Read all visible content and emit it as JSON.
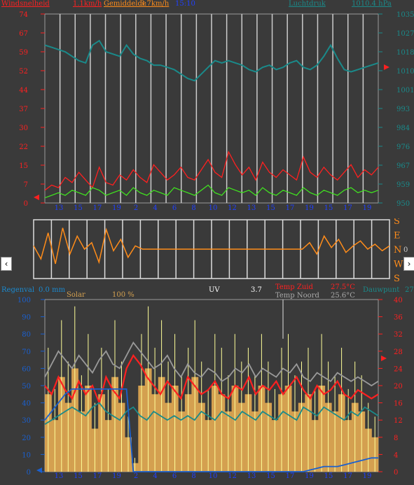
{
  "header": {
    "wind_label": "Windsnelheid",
    "wind_value": "1.1km/h",
    "avg_label": "Gemiddelde",
    "avg_value": "3.7km/h",
    "time": "15:10",
    "pressure_label": "Luchtdruk",
    "pressure_value": "1010.4 hPa"
  },
  "footer_header": {
    "rain_label": "Regenval",
    "rain_value": "0.0 mm",
    "solar_label": "Solar",
    "solar_value": "100 %",
    "uv_label": "UV",
    "uv_value": "3.7",
    "temp_south_label": "Temp Zuid",
    "temp_south_value": "27.5°C",
    "temp_north_label": "Temp Noord",
    "temp_north_value": "25.6°C",
    "dew_label": "Dauwpunt",
    "dew_value": "27"
  },
  "colors": {
    "background": "#3a3a3a",
    "plot_bg": "#3a3a3a",
    "red": "#ff2020",
    "green": "#40e020",
    "teal": "#1a8a8a",
    "orange": "#ff8c1a",
    "blue": "#1a60d0",
    "yellow": "#ffff99",
    "tan": "#d4a050",
    "grey": "#9a9a9a"
  },
  "nav": {
    "left_label": "‹",
    "right_label": "›"
  },
  "chart_data": [
    {
      "type": "line",
      "name_key": "wind",
      "y_ticks_left": [
        "74",
        "67",
        "59",
        "52",
        "44",
        "37",
        "30",
        "22",
        "15",
        "7",
        "0"
      ],
      "y_ticks_right": [
        "1035",
        "1027",
        "1018",
        "1010",
        "1001",
        "993",
        "984",
        "976",
        "967",
        "959",
        "950"
      ],
      "x_ticks": [
        "13",
        "15",
        "17",
        "19",
        "2",
        "4",
        "6",
        "8",
        "10",
        "12",
        "13",
        "15",
        "17",
        "19",
        "15",
        "17",
        "19"
      ],
      "ylim_left": [
        0,
        74
      ],
      "ylim_right": [
        950,
        1035
      ],
      "series": [
        {
          "key": "pressure",
          "axis": "right",
          "color": "teal",
          "values": [
            1021,
            1020,
            1019,
            1018,
            1016,
            1014,
            1013,
            1021,
            1023,
            1018,
            1017,
            1016,
            1021,
            1017,
            1015,
            1014,
            1012,
            1012,
            1011,
            1010,
            1008,
            1006,
            1005,
            1008,
            1011,
            1014,
            1013,
            1014,
            1013,
            1012,
            1010,
            1009,
            1011,
            1012,
            1010,
            1011,
            1013,
            1014,
            1011,
            1010,
            1012,
            1016,
            1021,
            1015,
            1010,
            1009,
            1010,
            1011,
            1012,
            1013
          ]
        },
        {
          "key": "gust",
          "axis": "left",
          "color": "red",
          "values": [
            5,
            7,
            6,
            10,
            8,
            12,
            9,
            6,
            14,
            8,
            7,
            11,
            9,
            13,
            10,
            8,
            15,
            12,
            9,
            11,
            14,
            10,
            9,
            13,
            17,
            12,
            10,
            20,
            15,
            11,
            14,
            9,
            16,
            12,
            10,
            13,
            11,
            9,
            18,
            12,
            10,
            14,
            11,
            9,
            12,
            15,
            10,
            13,
            11,
            14
          ]
        },
        {
          "key": "wind",
          "axis": "left",
          "color": "green",
          "values": [
            2,
            3,
            4,
            3,
            5,
            4,
            3,
            6,
            5,
            3,
            4,
            5,
            3,
            6,
            4,
            3,
            5,
            4,
            3,
            6,
            5,
            4,
            3,
            5,
            7,
            4,
            3,
            6,
            5,
            4,
            5,
            3,
            6,
            4,
            3,
            5,
            4,
            3,
            6,
            4,
            3,
            5,
            4,
            3,
            5,
            6,
            4,
            5,
            4,
            5
          ]
        }
      ]
    },
    {
      "type": "line",
      "name_key": "wind_direction",
      "y_ticks_right": [
        "S",
        "E",
        "N",
        "W",
        "S"
      ],
      "ylim": [
        0,
        360
      ],
      "series": [
        {
          "key": "direction",
          "color": "orange",
          "values": [
            200,
            120,
            280,
            90,
            310,
            150,
            260,
            180,
            220,
            100,
            300,
            170,
            240,
            130,
            200,
            180,
            180,
            180,
            180,
            180,
            180,
            180,
            180,
            180,
            180,
            180,
            180,
            180,
            180,
            180,
            180,
            180,
            180,
            180,
            180,
            180,
            180,
            180,
            220,
            150,
            260,
            190,
            240,
            160,
            200,
            230,
            180,
            210,
            170,
            200
          ]
        }
      ]
    },
    {
      "type": "line",
      "name_key": "temp_solar",
      "y_ticks_left": [
        "100",
        "90",
        "80",
        "70",
        "60",
        "50",
        "40",
        "30",
        "20",
        "10",
        "0"
      ],
      "y_ticks_right": [
        "40",
        "36",
        "32",
        "28",
        "24",
        "20",
        "16",
        "12",
        "8",
        "4",
        "0"
      ],
      "x_ticks": [
        "13",
        "15",
        "17",
        "19",
        "2",
        "4",
        "6",
        "8",
        "10",
        "12",
        "13",
        "15",
        "17",
        "19",
        "15",
        "17",
        "19"
      ],
      "ylim_left": [
        0,
        100
      ],
      "ylim_right": [
        0,
        40
      ],
      "series": [
        {
          "key": "temp_south",
          "axis": "right",
          "color": "red",
          "values": [
            20,
            18,
            22,
            19,
            17,
            21,
            18,
            20,
            16,
            22,
            19,
            17,
            24,
            27,
            25,
            22,
            20,
            18,
            21,
            19,
            17,
            22,
            20,
            18,
            19,
            21,
            18,
            17,
            20,
            19,
            22,
            18,
            20,
            19,
            21,
            18,
            20,
            22,
            19,
            17,
            20,
            18,
            19,
            21,
            18,
            17,
            19,
            18,
            17,
            18
          ]
        },
        {
          "key": "temp_north",
          "axis": "right",
          "color": "grey",
          "values": [
            22,
            25,
            28,
            26,
            24,
            27,
            25,
            23,
            26,
            28,
            25,
            24,
            27,
            30,
            28,
            26,
            24,
            25,
            27,
            24,
            22,
            25,
            23,
            22,
            24,
            23,
            21,
            22,
            24,
            23,
            25,
            22,
            24,
            23,
            22,
            24,
            23,
            25,
            22,
            21,
            23,
            22,
            21,
            23,
            22,
            21,
            22,
            21,
            20,
            21
          ]
        },
        {
          "key": "dewpoint",
          "axis": "right",
          "color": "teal",
          "values": [
            11,
            12,
            13,
            14,
            15,
            14,
            13,
            15,
            16,
            14,
            13,
            12,
            14,
            15,
            13,
            12,
            14,
            13,
            12,
            13,
            12,
            13,
            12,
            14,
            13,
            12,
            14,
            13,
            12,
            14,
            13,
            12,
            14,
            13,
            12,
            14,
            13,
            12,
            15,
            14,
            13,
            15,
            14,
            13,
            12,
            14,
            13,
            15,
            14,
            13
          ]
        },
        {
          "key": "rain",
          "axis": "left",
          "color": "blue",
          "values": [
            30,
            35,
            40,
            45,
            48,
            48,
            48,
            48,
            48,
            48,
            48,
            48,
            48,
            0,
            0,
            0,
            0,
            0,
            0,
            0,
            0,
            0,
            0,
            0,
            0,
            0,
            0,
            0,
            0,
            0,
            0,
            0,
            0,
            0,
            0,
            0,
            0,
            0,
            0,
            1,
            2,
            3,
            3,
            3,
            4,
            5,
            6,
            7,
            8,
            8
          ]
        },
        {
          "key": "solar",
          "axis": "left",
          "color": "tan",
          "values": [
            45,
            30,
            55,
            40,
            60,
            35,
            50,
            25,
            45,
            30,
            55,
            40,
            20,
            5,
            50,
            60,
            45,
            55,
            40,
            50,
            35,
            45,
            55,
            40,
            30,
            50,
            45,
            35,
            50,
            40,
            45,
            35,
            50,
            40,
            30,
            45,
            50,
            35,
            40,
            45,
            30,
            50,
            40,
            35,
            45,
            30,
            40,
            35,
            25,
            20
          ]
        }
      ]
    }
  ]
}
